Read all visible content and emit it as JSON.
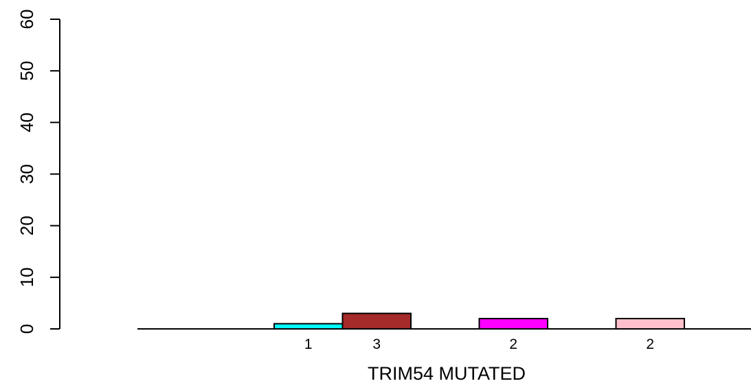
{
  "chart_data": {
    "type": "bar",
    "title": "",
    "xlabel": "TRIM54 MUTATED",
    "ylabel": "",
    "ylim": [
      0,
      60
    ],
    "yticks": [
      0,
      10,
      20,
      30,
      40,
      50,
      60
    ],
    "grid": false,
    "legend": "none",
    "bars": [
      {
        "value": 0,
        "label": "",
        "color": "#ffffff"
      },
      {
        "value": 0,
        "label": "",
        "color": "#ffffff"
      },
      {
        "value": 1,
        "label": "1",
        "color": "#00ffff"
      },
      {
        "value": 3,
        "label": "3",
        "color": "#a52a2a"
      },
      {
        "value": 0,
        "label": "",
        "color": "#ffffff"
      },
      {
        "value": 2,
        "label": "2",
        "color": "#ff00ff"
      },
      {
        "value": 0,
        "label": "",
        "color": "#ffffff"
      },
      {
        "value": 2,
        "label": "2",
        "color": "#ffc0cb"
      }
    ]
  }
}
